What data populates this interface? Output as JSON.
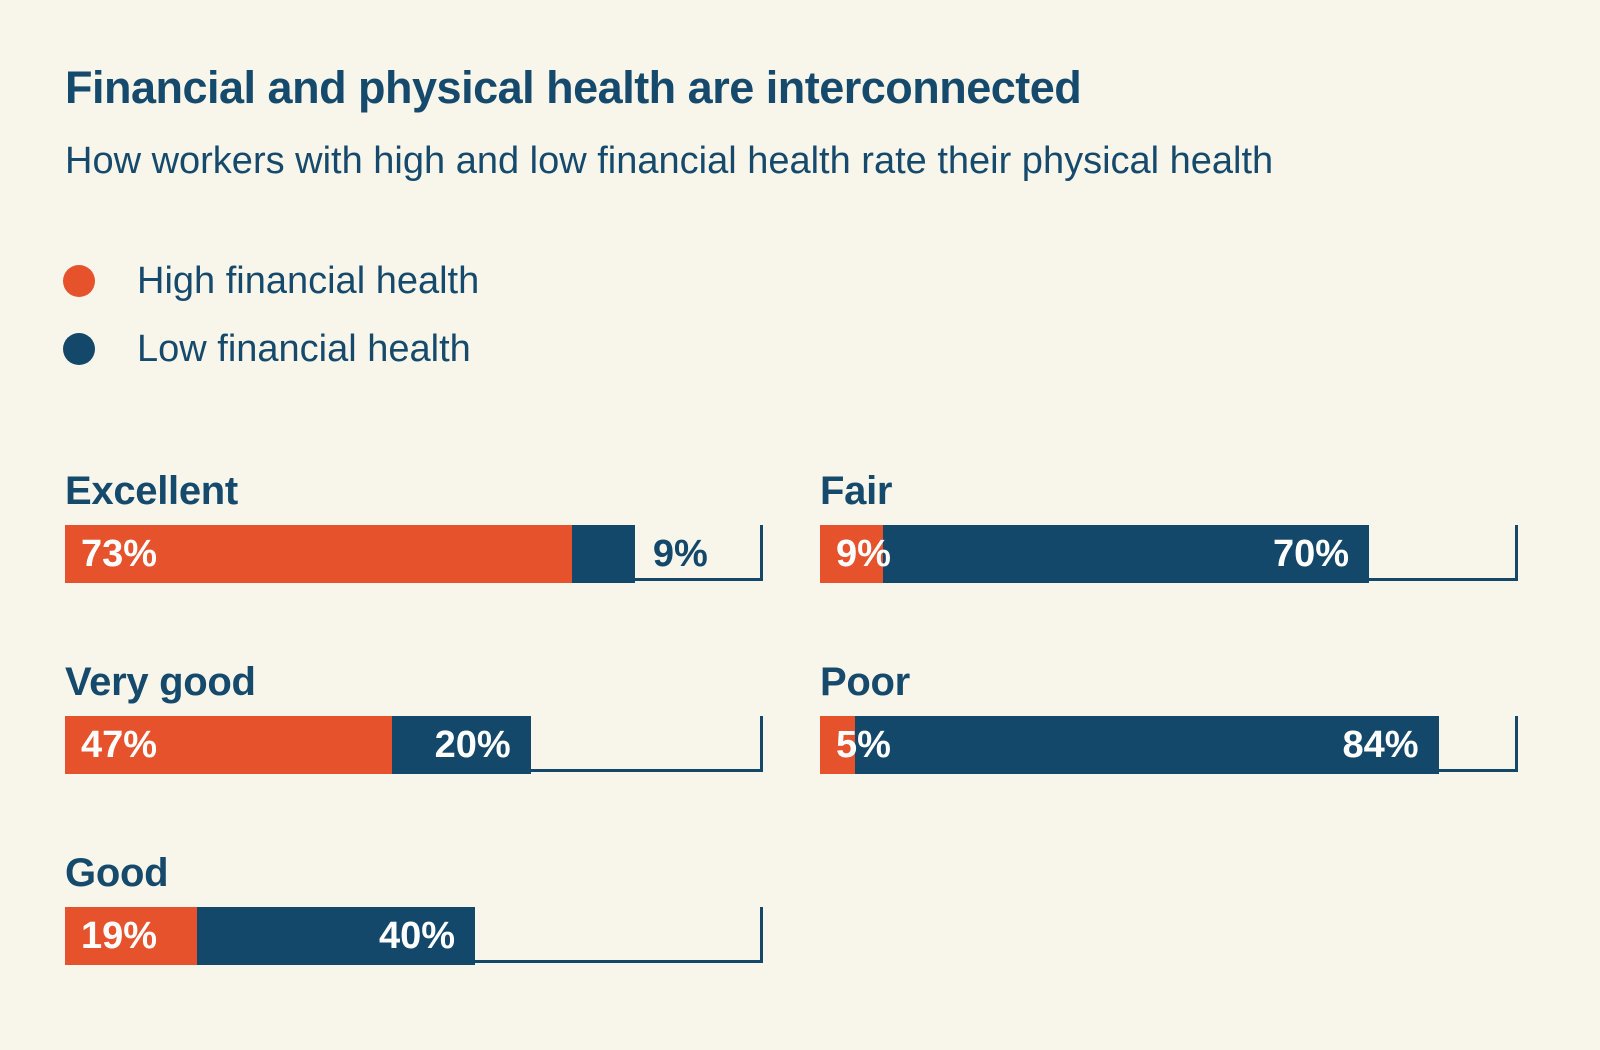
{
  "title": "Financial and physical health are interconnected",
  "subtitle": "How workers with high and low financial health rate their physical health",
  "colors": {
    "background": "#f8f5ea",
    "high_series_orange": "#e5522c",
    "low_series_navy": "#14486b",
    "text_navy": "#164a6c",
    "value_text_white": "#ffffff"
  },
  "legend": {
    "items": [
      {
        "label": "High financial health",
        "color": "#e5522c"
      },
      {
        "label": "Low financial health",
        "color": "#14486b"
      }
    ]
  },
  "chart_data": {
    "type": "bar",
    "orientation": "horizontal",
    "unit": "%",
    "title": "Financial and physical health are interconnected",
    "subtitle": "How workers with high and low financial health rate their physical health",
    "categories": [
      "Excellent",
      "Very good",
      "Good",
      "Fair",
      "Poor"
    ],
    "series": [
      {
        "name": "High financial health",
        "color": "#e5522c",
        "values": [
          73,
          47,
          19,
          9,
          5
        ]
      },
      {
        "name": "Low financial health",
        "color": "#14486b",
        "values": [
          9,
          20,
          40,
          70,
          84
        ]
      }
    ],
    "xlim": [
      0,
      100
    ],
    "grid": false,
    "legend_position": "top-left",
    "bar_style": "stacked with 100% bracket outline (bottom line and right tick)",
    "layout": {
      "left_column": [
        "Excellent",
        "Very good",
        "Good"
      ],
      "right_column": [
        "Fair",
        "Poor"
      ]
    }
  },
  "rows": [
    {
      "label": "Excellent",
      "high": 73,
      "low": 9,
      "high_label": "73%",
      "low_label": "9%",
      "low_label_placement": "outside"
    },
    {
      "label": "Very good",
      "high": 47,
      "low": 20,
      "high_label": "47%",
      "low_label": "20%",
      "low_label_placement": "inside"
    },
    {
      "label": "Good",
      "high": 19,
      "low": 40,
      "high_label": "19%",
      "low_label": "40%",
      "low_label_placement": "inside"
    },
    {
      "label": "Fair",
      "high": 9,
      "low": 70,
      "high_label": "9%",
      "low_label": "70%",
      "low_label_placement": "inside"
    },
    {
      "label": "Poor",
      "high": 5,
      "low": 84,
      "high_label": "5%",
      "low_label": "84%",
      "low_label_placement": "inside"
    }
  ]
}
